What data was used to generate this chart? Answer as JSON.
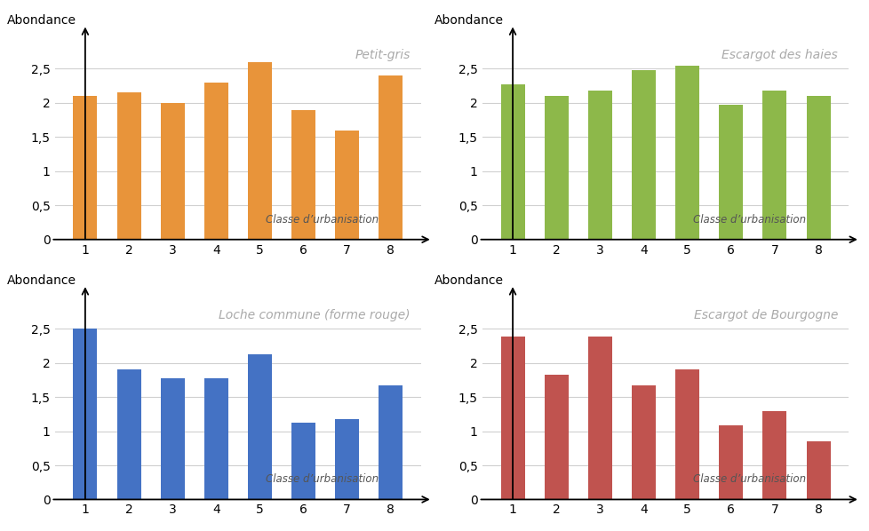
{
  "categories": [
    1,
    2,
    3,
    4,
    5,
    6,
    7,
    8
  ],
  "petit_gris": [
    2.1,
    2.15,
    2.0,
    2.3,
    2.6,
    1.9,
    1.6,
    2.4
  ],
  "escargot_haies": [
    2.27,
    2.1,
    2.18,
    2.48,
    2.55,
    1.97,
    2.18,
    2.1
  ],
  "loche_commune": [
    2.5,
    1.9,
    1.78,
    1.78,
    2.13,
    1.13,
    1.18,
    1.67
  ],
  "escargot_bourgogne": [
    2.38,
    1.83,
    2.38,
    1.67,
    1.9,
    1.08,
    1.3,
    0.85
  ],
  "color_orange": "#E8943A",
  "color_green": "#8DB84A",
  "color_blue": "#4472C4",
  "color_red": "#C0534F",
  "ylabel": "Abondance",
  "xlabel": "Classe d’urbanisation",
  "title_pg": "Petit-gris",
  "title_eh": "Escargot des haies",
  "title_lc": "Loche commune (forme rouge)",
  "title_eb": "Escargot de Bourgogne",
  "title_color": "#aaaaaa",
  "bg_color": "#ffffff",
  "grid_color": "#d0d0d0",
  "ylim": [
    0,
    3.0
  ],
  "yticks": [
    0,
    0.5,
    1.0,
    1.5,
    2.0,
    2.5
  ],
  "ytick_labels": [
    "0",
    "0,5",
    "1",
    "1,5",
    "2",
    "2,5"
  ],
  "bar_width": 0.55
}
